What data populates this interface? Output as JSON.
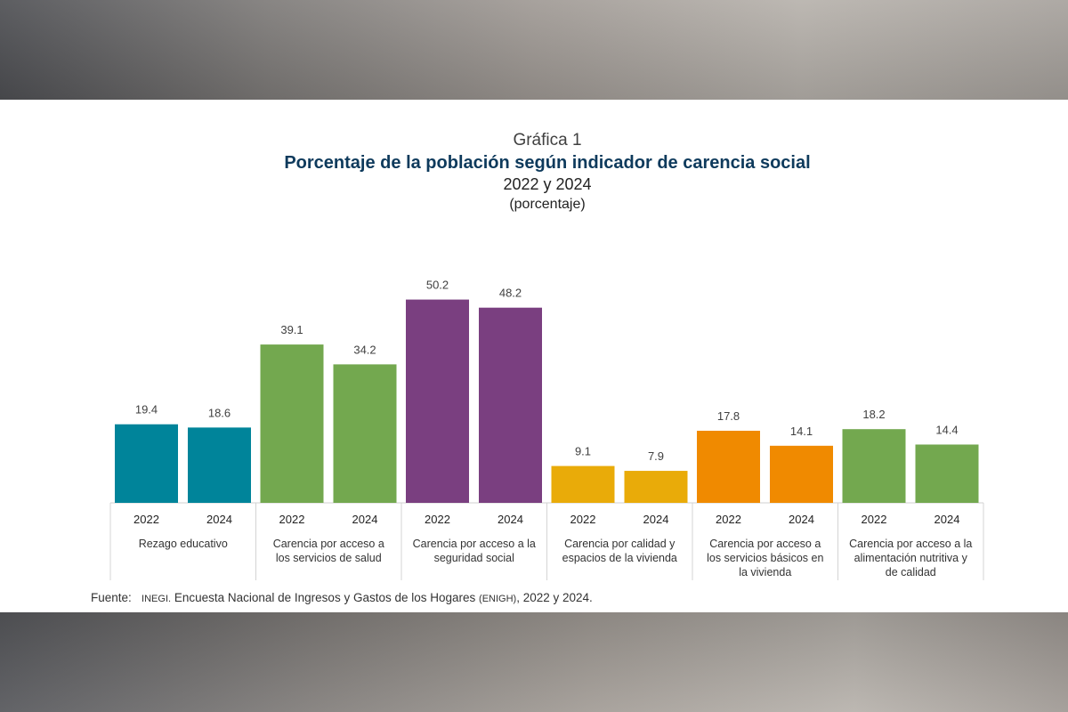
{
  "header": {
    "grafica": "Gráfica 1",
    "title": "Porcentaje de la población según indicador de carencia social",
    "years": "2022 y 2024",
    "unit": "(porcentaje)"
  },
  "source": {
    "label": "Fuente:",
    "org": "INEGI.",
    "text": "Encuesta Nacional de Ingresos y Gastos de los Hogares",
    "abbr": "(ENIGH)",
    "years": ", 2022 y 2024."
  },
  "chart_data": {
    "type": "bar",
    "title": "Porcentaje de la población según indicador de carencia social",
    "xlabel": "",
    "ylabel": "porcentaje",
    "ylim": [
      0,
      55
    ],
    "years": [
      "2022",
      "2024"
    ],
    "groups": [
      {
        "label": [
          "Rezago educativo"
        ],
        "values": [
          19.4,
          18.6
        ],
        "value_labels": [
          "19.4",
          "18.6"
        ],
        "color": "#00849a"
      },
      {
        "label": [
          "Carencia por acceso a",
          "los servicios de salud"
        ],
        "values": [
          39.1,
          34.2
        ],
        "value_labels": [
          "39.1",
          "34.2"
        ],
        "color": "#73a84f"
      },
      {
        "label": [
          "Carencia por acceso a la",
          "seguridad social"
        ],
        "values": [
          50.2,
          48.2
        ],
        "value_labels": [
          "50.2",
          "48.2"
        ],
        "color": "#7a3f80"
      },
      {
        "label": [
          "Carencia por calidad y",
          "espacios de la vivienda"
        ],
        "values": [
          9.1,
          7.9
        ],
        "value_labels": [
          "9.1",
          "7.9"
        ],
        "color": "#e9ab09"
      },
      {
        "label": [
          "Carencia por acceso a",
          "los servicios básicos en",
          "la vivienda"
        ],
        "values": [
          17.8,
          14.1
        ],
        "value_labels": [
          "17.8",
          "14.1"
        ],
        "color": "#f08a00"
      },
      {
        "label": [
          "Carencia por acceso a la",
          "alimentación nutritiva y",
          "de calidad"
        ],
        "values": [
          18.2,
          14.4
        ],
        "value_labels": [
          "18.2",
          "14.4"
        ],
        "color": "#73a84f"
      }
    ]
  }
}
